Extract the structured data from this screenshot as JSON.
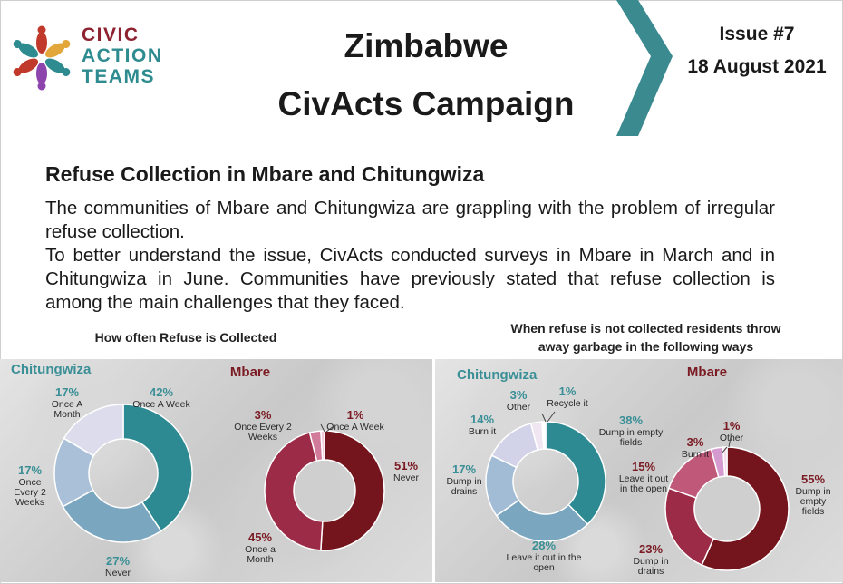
{
  "header": {
    "logo_lines": [
      "CIVIC",
      "ACTION",
      "TEAMS"
    ],
    "title_line1": "Zimbabwe",
    "title_line2": "CivActs Campaign",
    "issue": "Issue #7",
    "date": "18 August 2021"
  },
  "article": {
    "heading": "Refuse Collection in Mbare and Chitungwiza",
    "paragraph1": "The communities of Mbare and Chitungwiza are grappling with the problem of irregular refuse collection.",
    "paragraph2": "To better understand the issue, CivActs conducted surveys in Mbare in March and in Chitungwiza in June. Communities have previously stated that refuse collection is among the main challenges that they faced."
  },
  "colors": {
    "teal": "#3a8f96",
    "maroon": "#7a1a22",
    "chevron": "#3a8a90"
  },
  "chart_data": [
    {
      "type": "pie",
      "variant": "donut",
      "title": "How often Refuse is Collected",
      "subtitle": "Chitungwiza",
      "categories": [
        "Once A Week",
        "Never",
        "Once Every 2 Weeks",
        "Once A Month"
      ],
      "values": [
        42,
        27,
        17,
        17
      ],
      "colors": [
        "#2d8a92",
        "#7aa6bf",
        "#a9c0d8",
        "#dcdcec"
      ]
    },
    {
      "type": "pie",
      "variant": "donut",
      "title": "How often Refuse is Collected",
      "subtitle": "Mbare",
      "categories": [
        "Never",
        "Once a Month",
        "Once Every 2 Weeks",
        "Once A Week"
      ],
      "values": [
        51,
        45,
        3,
        1
      ],
      "colors": [
        "#74151d",
        "#9b2b46",
        "#d17a9a",
        "#f2cbd8"
      ]
    },
    {
      "type": "pie",
      "variant": "donut",
      "title": "When refuse is not collected residents throw away garbage in the following ways",
      "subtitle": "Chitungwiza",
      "categories": [
        "Dump in empty fields",
        "Leave it out in the open",
        "Dump in drains",
        "Burn it",
        "Other",
        "Recycle it"
      ],
      "values": [
        38,
        28,
        17,
        14,
        3,
        1
      ],
      "colors": [
        "#2d8a92",
        "#7aa6bf",
        "#a3bcd6",
        "#d2d2e8",
        "#f0e6f2",
        "#ffffff"
      ]
    },
    {
      "type": "pie",
      "variant": "donut",
      "title": "When refuse is not collected residents throw away garbage in the following ways",
      "subtitle": "Mbare",
      "categories": [
        "Dump in empty fields",
        "Dump in drains",
        "Leave it out in the open",
        "Burn it",
        "Other"
      ],
      "values": [
        55,
        23,
        15,
        3,
        1
      ],
      "colors": [
        "#74151d",
        "#9b2b46",
        "#c0587a",
        "#d59bd0",
        "#f3dcec"
      ]
    }
  ]
}
